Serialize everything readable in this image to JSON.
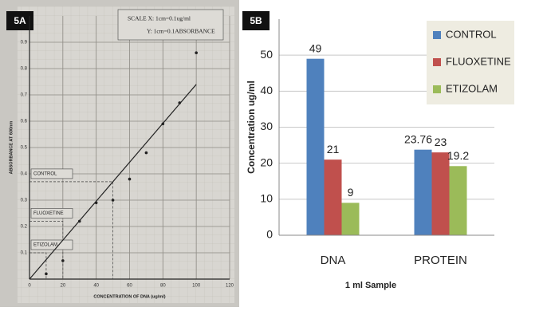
{
  "chart_data": [
    {
      "type": "scatter",
      "panel_label": "5A",
      "scale_notes": [
        "SCALE X: 1cm=0.1ug/ml",
        "Y: 1cm=0.1ABSORBANCE"
      ],
      "x_label": "CONCENTRATION OF DNA (ug/ml)",
      "y_label": "ABSORBANCE AT 600nm",
      "x": [
        10,
        20,
        30,
        40,
        50,
        60,
        70,
        80,
        90,
        100
      ],
      "y": [
        0.02,
        0.07,
        0.22,
        0.29,
        0.3,
        0.38,
        0.48,
        0.59,
        0.67,
        0.86
      ],
      "color": "#222222",
      "fit": {
        "x": [
          0,
          100
        ],
        "y": [
          0,
          0.74
        ],
        "color": "#222222"
      },
      "annotations": [
        {
          "text": "CONTROL",
          "x": 50,
          "y": 0.37
        },
        {
          "text": "FLUOXETINE",
          "x": 20,
          "y": 0.22
        },
        {
          "text": "ETIZOLAM",
          "x": 10,
          "y": 0.1
        }
      ],
      "xlim": [
        0,
        120
      ],
      "xticks": [
        0,
        20,
        40,
        60,
        80,
        100,
        120
      ],
      "ylim": [
        0,
        1.0
      ],
      "yticks": [
        0.1,
        0.2,
        0.3,
        0.4,
        0.5,
        0.6,
        0.7,
        0.8,
        0.9
      ],
      "grid": true
    },
    {
      "type": "bar",
      "panel_label": "5B",
      "y_label": "Concentration ug/ml",
      "x_label": "1 ml Sample",
      "categories": [
        "DNA",
        "PROTEIN"
      ],
      "series": [
        {
          "name": "CONTROL",
          "color": "#4f81bd",
          "values": [
            49,
            23.76
          ]
        },
        {
          "name": "FLUOXETINE",
          "color": "#c0504d",
          "values": [
            21,
            23
          ]
        },
        {
          "name": "ETIZOLAM",
          "color": "#9bbb59",
          "values": [
            9,
            19.2
          ]
        }
      ],
      "ylim": [
        0,
        60
      ],
      "yticks": [
        0,
        10,
        20,
        30,
        40,
        50
      ],
      "grid": true,
      "legend": "top-right"
    }
  ]
}
